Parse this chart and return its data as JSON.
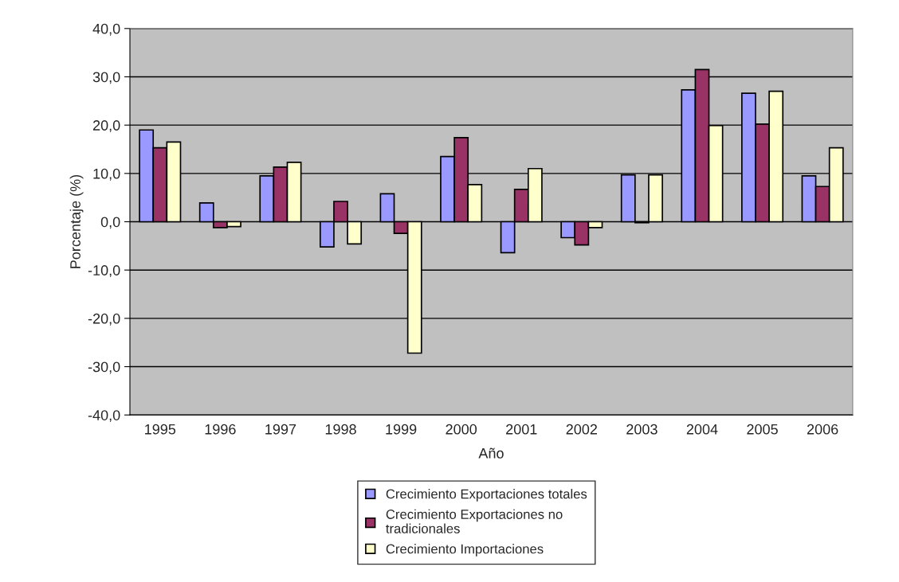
{
  "chart_data": {
    "type": "bar",
    "xlabel": "Año",
    "ylabel": "Porcentaje (%)",
    "categories": [
      "1995",
      "1996",
      "1997",
      "1998",
      "1999",
      "2000",
      "2001",
      "2002",
      "2003",
      "2004",
      "2005",
      "2006"
    ],
    "series": [
      {
        "name": "Crecimiento Exportaciones totales",
        "color": "#9999ff",
        "values": [
          19.0,
          3.9,
          9.5,
          -5.2,
          5.8,
          13.5,
          -6.4,
          -3.3,
          9.7,
          27.3,
          26.6,
          9.5
        ]
      },
      {
        "name": "Crecimiento Exportaciones no\ntradicionales",
        "color": "#993366",
        "values": [
          15.3,
          -1.2,
          11.3,
          4.2,
          -2.4,
          17.4,
          6.7,
          -4.8,
          -0.2,
          31.5,
          20.2,
          7.3
        ]
      },
      {
        "name": "Crecimiento Importaciones",
        "color": "#ffffcc",
        "values": [
          16.5,
          -1.0,
          12.3,
          -4.6,
          -27.2,
          7.7,
          11.0,
          -1.2,
          9.7,
          19.9,
          27.0,
          15.3
        ]
      }
    ],
    "ylim": [
      -40,
      40
    ],
    "yticks": [
      {
        "value": -40,
        "label": "-40,0"
      },
      {
        "value": -30,
        "label": "-30,0"
      },
      {
        "value": -20,
        "label": "-20,0"
      },
      {
        "value": -10,
        "label": "-10,0"
      },
      {
        "value": 0,
        "label": "0,0"
      },
      {
        "value": 10,
        "label": "10,0"
      },
      {
        "value": 20,
        "label": "20,0"
      },
      {
        "value": 30,
        "label": "30,0"
      },
      {
        "value": 40,
        "label": "40,0"
      }
    ],
    "grid": "y",
    "legend": "bottom"
  }
}
